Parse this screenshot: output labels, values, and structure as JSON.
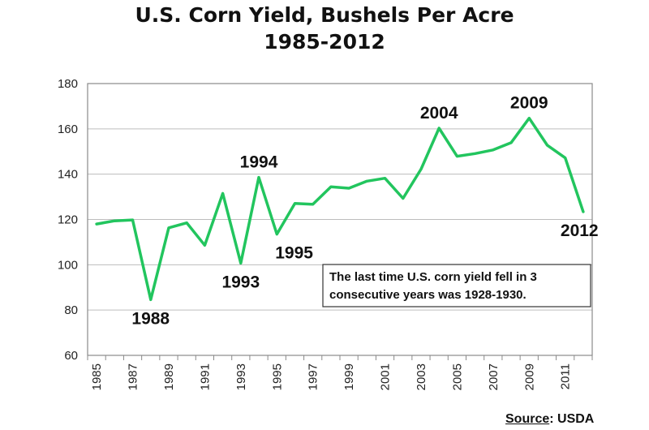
{
  "chart_data": {
    "type": "line",
    "title": "U.S. Corn Yield, Bushels Per Acre",
    "subtitle": "1985-2012",
    "xlabel": "",
    "ylabel": "",
    "ylim": [
      60,
      180
    ],
    "yticks": [
      60,
      80,
      100,
      120,
      140,
      160,
      180
    ],
    "x": [
      1985,
      1986,
      1987,
      1988,
      1989,
      1990,
      1991,
      1992,
      1993,
      1994,
      1995,
      1996,
      1997,
      1998,
      1999,
      2000,
      2001,
      2002,
      2003,
      2004,
      2005,
      2006,
      2007,
      2008,
      2009,
      2010,
      2011,
      2012
    ],
    "xtick_labels": [
      "1985",
      "1987",
      "1989",
      "1991",
      "1993",
      "1995",
      "1997",
      "1999",
      "2001",
      "2003",
      "2005",
      "2007",
      "2009",
      "2011"
    ],
    "series": [
      {
        "color": "#22c55e",
        "values": [
          118,
          119.4,
          119.8,
          84.6,
          116.3,
          118.5,
          108.6,
          131.5,
          100.7,
          138.6,
          113.5,
          127.1,
          126.7,
          134.4,
          133.8,
          136.9,
          138.2,
          129.3,
          142.2,
          160.3,
          147.9,
          149.1,
          150.7,
          153.9,
          164.7,
          152.8,
          147.2,
          123.4
        ]
      }
    ],
    "annotations": [
      {
        "text": "1988",
        "year": 1988
      },
      {
        "text": "1993",
        "year": 1993
      },
      {
        "text": "1994",
        "year": 1994
      },
      {
        "text": "1995",
        "year": 1995
      },
      {
        "text": "2004",
        "year": 2004
      },
      {
        "text": "2009",
        "year": 2009
      },
      {
        "text": "2012",
        "year": 2012
      }
    ],
    "note": [
      "The last time U.S. corn yield fell in 3",
      "consecutive years was 1928-1930."
    ],
    "grid": true
  },
  "source": {
    "label": "Source",
    "text": ": USDA"
  },
  "colors": {
    "line": "#22c55e",
    "grid": "#bdbdbd",
    "frame": "#8a8a8a"
  }
}
